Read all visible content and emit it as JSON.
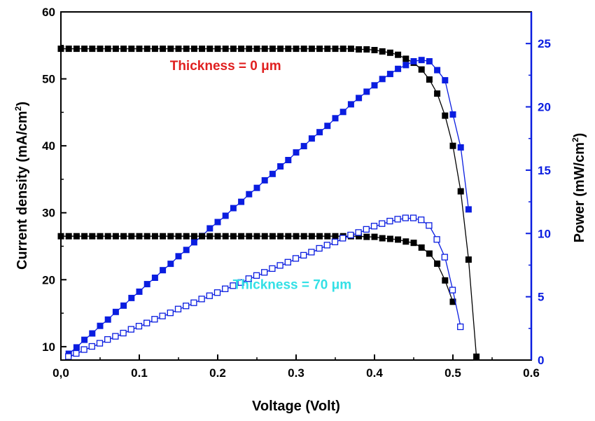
{
  "chart_data": {
    "type": "scatter",
    "title": "",
    "xlabel": "Voltage (Volt)",
    "ylabel_left": "Current density (mA/cm",
    "ylabel_left_sup": "2",
    "ylabel_left_end": ")",
    "ylabel_right": "Power (mW/cm",
    "ylabel_right_sup": "2",
    "ylabel_right_end": ")",
    "xlim": [
      0,
      0.6
    ],
    "ylim_left": [
      8,
      60
    ],
    "ylim_right": [
      0,
      27.5
    ],
    "x_ticks": [
      {
        "value": 0.0,
        "label": "0,0"
      },
      {
        "value": 0.1,
        "label": "0.1"
      },
      {
        "value": 0.2,
        "label": "0.2"
      },
      {
        "value": 0.3,
        "label": "0.3"
      },
      {
        "value": 0.4,
        "label": "0.4"
      },
      {
        "value": 0.5,
        "label": "0.5"
      },
      {
        "value": 0.6,
        "label": "0.6"
      }
    ],
    "y_left_ticks": [
      {
        "value": 10,
        "label": "10"
      },
      {
        "value": 20,
        "label": "20"
      },
      {
        "value": 30,
        "label": "30"
      },
      {
        "value": 40,
        "label": "40"
      },
      {
        "value": 50,
        "label": "50"
      },
      {
        "value": 60,
        "label": "60"
      }
    ],
    "y_right_ticks": [
      {
        "value": 0,
        "label": "0"
      },
      {
        "value": 5,
        "label": "5"
      },
      {
        "value": 10,
        "label": "10"
      },
      {
        "value": 15,
        "label": "15"
      },
      {
        "value": 20,
        "label": "20"
      },
      {
        "value": 25,
        "label": "25"
      }
    ],
    "annotations": [
      {
        "text": "Thickness = 0 μm",
        "x": 0.21,
        "y_left": 51.3,
        "color": "#e02020"
      },
      {
        "text": "Thickness = 70 μm",
        "x": 0.295,
        "y_left": 18.6,
        "color": "#33e0e6"
      }
    ],
    "colors": {
      "current": "#000000",
      "power": "#0a1de0",
      "axis_left": "#000000",
      "axis_right": "#0a1de0"
    },
    "series": [
      {
        "axis": "left",
        "color": "#000000",
        "marker": "filled-square",
        "x": [
          0.0,
          0.01,
          0.02,
          0.03,
          0.04,
          0.05,
          0.06,
          0.07,
          0.08,
          0.09,
          0.1,
          0.11,
          0.12,
          0.13,
          0.14,
          0.15,
          0.16,
          0.17,
          0.18,
          0.19,
          0.2,
          0.21,
          0.22,
          0.23,
          0.24,
          0.25,
          0.26,
          0.27,
          0.28,
          0.29,
          0.3,
          0.31,
          0.32,
          0.33,
          0.34,
          0.35,
          0.36,
          0.37,
          0.38,
          0.39,
          0.4,
          0.41,
          0.42,
          0.43,
          0.44,
          0.45,
          0.46,
          0.47,
          0.48,
          0.49,
          0.5,
          0.51,
          0.52,
          0.53
        ],
        "y": [
          54.5,
          54.5,
          54.5,
          54.5,
          54.5,
          54.5,
          54.5,
          54.5,
          54.5,
          54.5,
          54.5,
          54.5,
          54.5,
          54.5,
          54.5,
          54.5,
          54.5,
          54.5,
          54.5,
          54.5,
          54.5,
          54.5,
          54.5,
          54.5,
          54.5,
          54.5,
          54.5,
          54.5,
          54.5,
          54.5,
          54.5,
          54.5,
          54.5,
          54.5,
          54.5,
          54.5,
          54.5,
          54.5,
          54.4,
          54.4,
          54.3,
          54.1,
          53.9,
          53.6,
          53.0,
          52.4,
          51.4,
          49.9,
          47.8,
          44.5,
          40.0,
          33.2,
          23.0,
          8.5
        ]
      },
      {
        "axis": "right",
        "color": "#0a1de0",
        "marker": "filled-square",
        "x": [
          0.01,
          0.02,
          0.03,
          0.04,
          0.05,
          0.06,
          0.07,
          0.08,
          0.09,
          0.1,
          0.11,
          0.12,
          0.13,
          0.14,
          0.15,
          0.16,
          0.17,
          0.18,
          0.19,
          0.2,
          0.21,
          0.22,
          0.23,
          0.24,
          0.25,
          0.26,
          0.27,
          0.28,
          0.29,
          0.3,
          0.31,
          0.32,
          0.33,
          0.34,
          0.35,
          0.36,
          0.37,
          0.38,
          0.39,
          0.4,
          0.41,
          0.42,
          0.43,
          0.44,
          0.45,
          0.46,
          0.47,
          0.48,
          0.49,
          0.5,
          0.51,
          0.52
        ],
        "y": [
          0.5,
          1.0,
          1.6,
          2.1,
          2.7,
          3.2,
          3.8,
          4.3,
          4.9,
          5.4,
          6.0,
          6.5,
          7.1,
          7.6,
          8.2,
          8.7,
          9.3,
          9.8,
          10.4,
          10.9,
          11.4,
          12.0,
          12.5,
          13.1,
          13.6,
          14.2,
          14.7,
          15.3,
          15.8,
          16.4,
          16.9,
          17.5,
          18.0,
          18.5,
          19.1,
          19.6,
          20.2,
          20.7,
          21.2,
          21.7,
          22.2,
          22.6,
          23.0,
          23.3,
          23.6,
          23.7,
          23.6,
          22.9,
          22.1,
          19.4,
          16.8,
          11.9
        ]
      },
      {
        "axis": "left",
        "color": "#000000",
        "marker": "filled-square",
        "x": [
          0.0,
          0.01,
          0.02,
          0.03,
          0.04,
          0.05,
          0.06,
          0.07,
          0.08,
          0.09,
          0.1,
          0.11,
          0.12,
          0.13,
          0.14,
          0.15,
          0.16,
          0.17,
          0.18,
          0.19,
          0.2,
          0.21,
          0.22,
          0.23,
          0.24,
          0.25,
          0.26,
          0.27,
          0.28,
          0.29,
          0.3,
          0.31,
          0.32,
          0.33,
          0.34,
          0.35,
          0.36,
          0.37,
          0.38,
          0.39,
          0.4,
          0.41,
          0.42,
          0.43,
          0.44,
          0.45,
          0.46,
          0.47,
          0.48,
          0.49,
          0.5
        ],
        "y": [
          26.5,
          26.5,
          26.5,
          26.5,
          26.5,
          26.5,
          26.5,
          26.5,
          26.5,
          26.5,
          26.5,
          26.5,
          26.5,
          26.5,
          26.5,
          26.5,
          26.5,
          26.5,
          26.5,
          26.5,
          26.5,
          26.5,
          26.5,
          26.5,
          26.5,
          26.5,
          26.5,
          26.5,
          26.5,
          26.5,
          26.5,
          26.5,
          26.5,
          26.5,
          26.5,
          26.5,
          26.5,
          26.5,
          26.5,
          26.4,
          26.4,
          26.2,
          26.1,
          26.0,
          25.7,
          25.5,
          24.8,
          23.9,
          22.4,
          19.9,
          16.7
        ]
      },
      {
        "axis": "right",
        "color": "#0a1de0",
        "marker": "open-square",
        "x": [
          0.01,
          0.02,
          0.03,
          0.04,
          0.05,
          0.06,
          0.07,
          0.08,
          0.09,
          0.1,
          0.11,
          0.12,
          0.13,
          0.14,
          0.15,
          0.16,
          0.17,
          0.18,
          0.19,
          0.2,
          0.21,
          0.22,
          0.23,
          0.24,
          0.25,
          0.26,
          0.27,
          0.28,
          0.29,
          0.3,
          0.31,
          0.32,
          0.33,
          0.34,
          0.35,
          0.36,
          0.37,
          0.38,
          0.39,
          0.4,
          0.41,
          0.42,
          0.43,
          0.44,
          0.45,
          0.46,
          0.47,
          0.48,
          0.49,
          0.5,
          0.51
        ],
        "y": [
          0.25,
          0.5,
          0.8,
          1.05,
          1.3,
          1.6,
          1.85,
          2.1,
          2.4,
          2.65,
          2.9,
          3.2,
          3.45,
          3.7,
          4.0,
          4.25,
          4.5,
          4.8,
          5.05,
          5.3,
          5.6,
          5.85,
          6.1,
          6.4,
          6.65,
          6.9,
          7.2,
          7.45,
          7.7,
          8.0,
          8.25,
          8.5,
          8.8,
          9.05,
          9.3,
          9.6,
          9.85,
          10.05,
          10.3,
          10.55,
          10.75,
          10.95,
          11.1,
          11.2,
          11.2,
          11.05,
          10.6,
          9.5,
          8.1,
          5.5,
          2.6
        ]
      }
    ]
  }
}
